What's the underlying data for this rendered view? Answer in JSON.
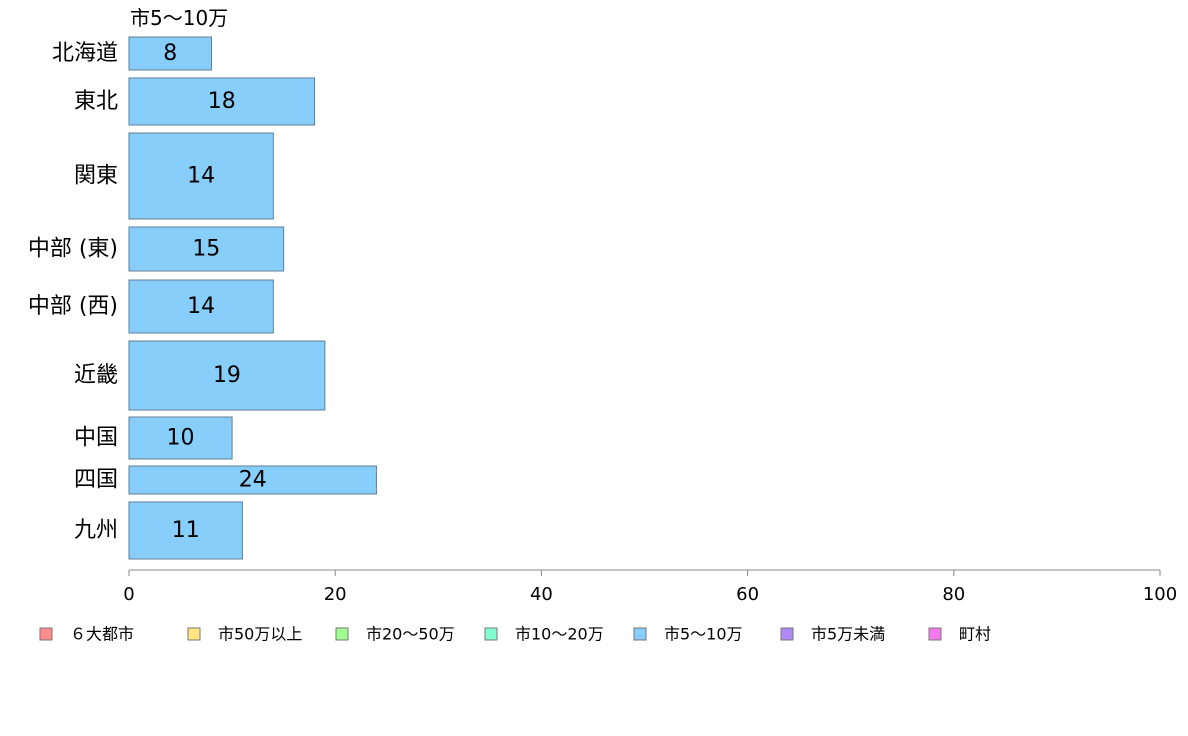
{
  "chart_data": {
    "type": "bar",
    "orientation": "horizontal",
    "title": "市5〜10万",
    "categories": [
      "北海道",
      "東北",
      "関東",
      "中部 (東)",
      "中部 (西)",
      "近畿",
      "中国",
      "四国",
      "九州"
    ],
    "series": [
      {
        "name": "市5〜10万",
        "values": [
          8,
          18,
          14,
          15,
          14,
          19,
          10,
          24,
          11
        ],
        "color": "#87cefa"
      }
    ],
    "data_labels": [
      "8",
      "18",
      "14",
      "15",
      "14",
      "19",
      "10",
      "24",
      "11"
    ],
    "xlim": [
      0,
      100
    ],
    "x_ticks": [
      0,
      20,
      40,
      60,
      80,
      100
    ],
    "grid": false,
    "legend": {
      "position": "bottom",
      "items": [
        {
          "label": "６大都市",
          "color": "#ff8c8c"
        },
        {
          "label": "市50万以上",
          "color": "#ffe680"
        },
        {
          "label": "市20〜50万",
          "color": "#a0ff90"
        },
        {
          "label": "市10〜20万",
          "color": "#80ffd0"
        },
        {
          "label": "市5〜10万",
          "color": "#87cefa"
        },
        {
          "label": "市5万未満",
          "color": "#b088f8"
        },
        {
          "label": "町村",
          "color": "#f878f0"
        }
      ]
    }
  }
}
